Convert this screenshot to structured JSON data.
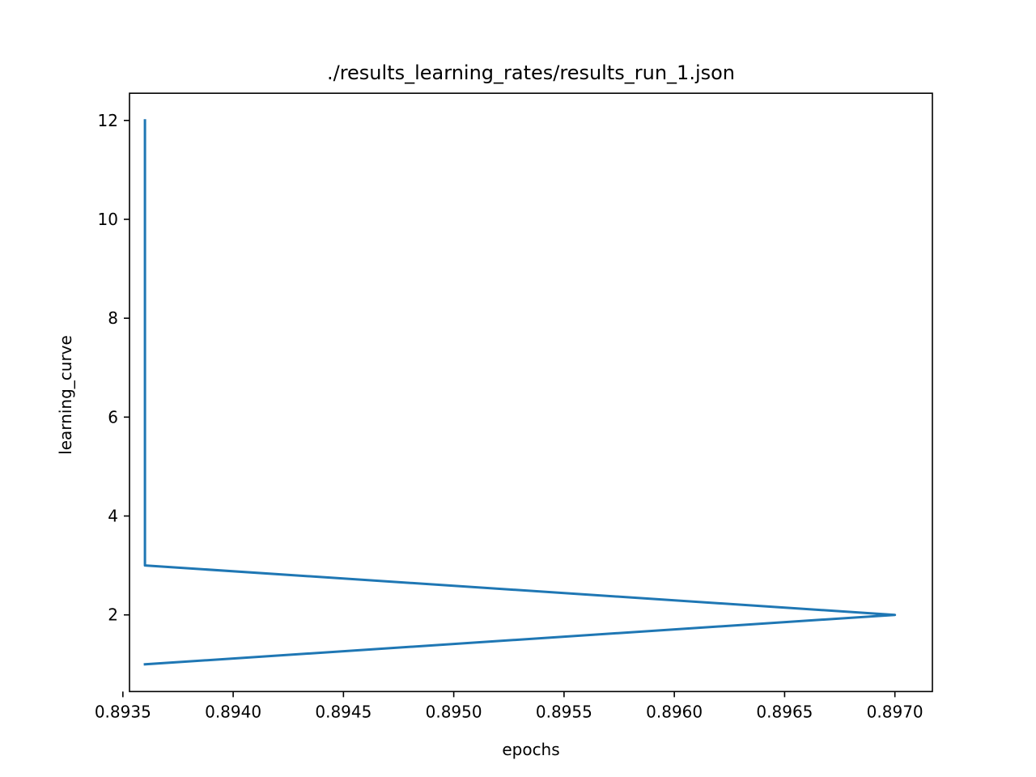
{
  "chart_data": {
    "type": "line",
    "title": "./results_learning_rates/results_run_1.json",
    "xlabel": "epochs",
    "ylabel": "learning_curve",
    "xlim": [
      0.89353,
      0.89717
    ],
    "ylim": [
      0.45,
      12.55
    ],
    "x_ticks": [
      0.8935,
      0.894,
      0.8945,
      0.895,
      0.8955,
      0.896,
      0.8965,
      0.897
    ],
    "x_tick_labels": [
      "0.8935",
      "0.8940",
      "0.8945",
      "0.8950",
      "0.8955",
      "0.8960",
      "0.8965",
      "0.8970"
    ],
    "y_ticks": [
      2,
      4,
      6,
      8,
      10,
      12
    ],
    "y_tick_labels": [
      "2",
      "4",
      "6",
      "8",
      "10",
      "12"
    ],
    "grid": false,
    "series": [
      {
        "color": "#1f77b4",
        "points": [
          {
            "x": 0.8936,
            "y": 1
          },
          {
            "x": 0.897,
            "y": 2
          },
          {
            "x": 0.8936,
            "y": 3
          },
          {
            "x": 0.8936,
            "y": 4
          },
          {
            "x": 0.8936,
            "y": 5
          },
          {
            "x": 0.8936,
            "y": 6
          },
          {
            "x": 0.8936,
            "y": 7
          },
          {
            "x": 0.8936,
            "y": 8
          },
          {
            "x": 0.8936,
            "y": 9
          },
          {
            "x": 0.8936,
            "y": 10
          },
          {
            "x": 0.8936,
            "y": 11
          },
          {
            "x": 0.8936,
            "y": 12
          }
        ]
      }
    ]
  }
}
